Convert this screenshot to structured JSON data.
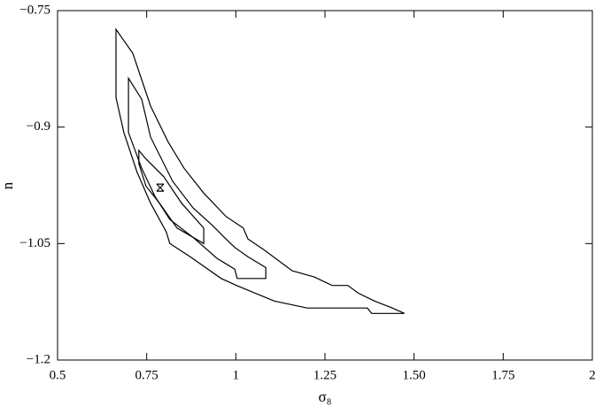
{
  "chart_data": {
    "type": "contour",
    "x_label": "σ₈",
    "y_label": "n",
    "xlim": [
      0.5,
      2
    ],
    "ylim": [
      -1.2,
      -0.75
    ],
    "xticks": [
      0.5,
      0.75,
      1,
      1.25,
      {
        "value": 1.5,
        "label": "1.50"
      },
      1.75,
      2
    ],
    "yticks": [
      {
        "value": -1.2,
        "label": "−1.2"
      },
      {
        "value": -1.05,
        "label": "−1.05"
      },
      {
        "value": -0.9,
        "label": "−0.9"
      },
      {
        "value": -0.75,
        "label": "−0.75"
      }
    ],
    "color": "#000000",
    "series": [
      {
        "x": [
          0.664,
          0.664,
          0.686,
          0.723,
          0.761,
          0.805,
          0.815,
          0.872,
          0.959,
          1.002,
          1.108,
          1.2,
          1.369,
          1.381,
          1.473,
          1.439,
          1.389,
          1.344,
          1.314,
          1.27,
          1.22,
          1.158,
          1.079,
          1.034,
          1.021,
          0.972,
          0.91,
          0.855,
          0.81,
          0.761,
          0.711
        ],
        "y": [
          -0.774,
          -0.862,
          -0.907,
          -0.958,
          -0.998,
          -1.035,
          -1.05,
          -1.067,
          -1.095,
          -1.104,
          -1.124,
          -1.133,
          -1.133,
          -1.14,
          -1.14,
          -1.133,
          -1.124,
          -1.114,
          -1.104,
          -1.104,
          -1.093,
          -1.085,
          -1.058,
          -1.044,
          -1.03,
          -1.015,
          -0.985,
          -0.953,
          -0.919,
          -0.873,
          -0.805
        ]
      },
      {
        "x": [
          0.699,
          0.699,
          0.736,
          0.773,
          0.815,
          0.88,
          0.947,
          0.997,
          1.004,
          1.084,
          1.084,
          1.034,
          0.997,
          0.972,
          0.935,
          0.88,
          0.823,
          0.761,
          0.736
        ],
        "y": [
          -0.837,
          -0.907,
          -0.953,
          -0.989,
          -1.019,
          -1.042,
          -1.069,
          -1.083,
          -1.095,
          -1.095,
          -1.081,
          -1.067,
          -1.055,
          -1.044,
          -1.027,
          -1.004,
          -0.97,
          -0.913,
          -0.864
        ]
      },
      {
        "x": [
          0.728,
          0.728,
          0.748,
          0.786,
          0.835,
          0.91,
          0.91,
          0.848,
          0.798,
          0.748
        ],
        "y": [
          -0.93,
          -0.947,
          -0.976,
          -0.998,
          -1.03,
          -1.05,
          -1.03,
          -0.998,
          -0.964,
          -0.941
        ]
      }
    ],
    "best_fit": {
      "x": 0.788,
      "y": -0.978
    }
  }
}
